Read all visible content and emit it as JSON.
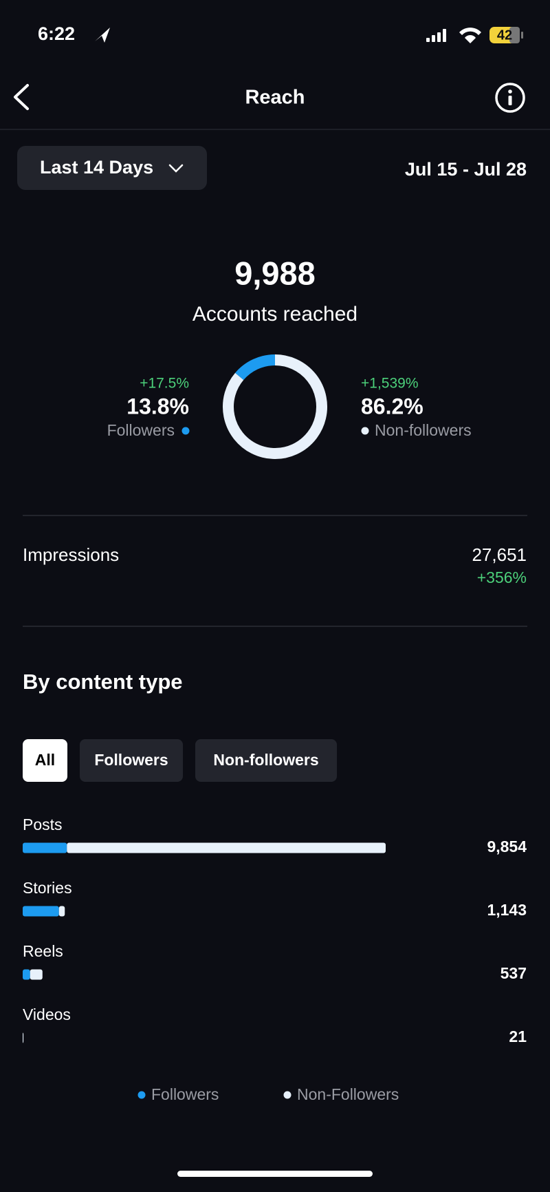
{
  "status": {
    "time": "6:22",
    "battery": "42"
  },
  "header": {
    "title": "Reach"
  },
  "filter": {
    "range": "Last 14 Days",
    "dates": "Jul 15 - Jul 28"
  },
  "summary": {
    "value": "9,988",
    "label": "Accounts reached"
  },
  "donut": {
    "type": "pie",
    "segments": [
      {
        "name": "Followers",
        "change": "+17.5%",
        "value": 13.8,
        "value_label": "13.8%",
        "color": "#1d9bf0"
      },
      {
        "name": "Non-followers",
        "change": "+1,539%",
        "value": 86.2,
        "value_label": "86.2%",
        "color": "#e8f1fb"
      }
    ]
  },
  "impressions": {
    "label": "Impressions",
    "value": "27,651",
    "change": "+356%"
  },
  "by_content": {
    "type": "bar",
    "title": "By content type",
    "tabs": [
      "All",
      "Followers",
      "Non-followers"
    ],
    "categories": [
      "Posts",
      "Stories",
      "Reels",
      "Videos"
    ],
    "series": [
      {
        "name": "Followers",
        "color": "#1d9bf0",
        "values": [
          1200,
          985,
          200,
          0
        ]
      },
      {
        "name": "Non-Followers",
        "color": "#e8f1fb",
        "values": [
          8654,
          158,
          337,
          21
        ]
      }
    ],
    "total_labels": [
      "9,854",
      "1,143",
      "537",
      "21"
    ]
  }
}
